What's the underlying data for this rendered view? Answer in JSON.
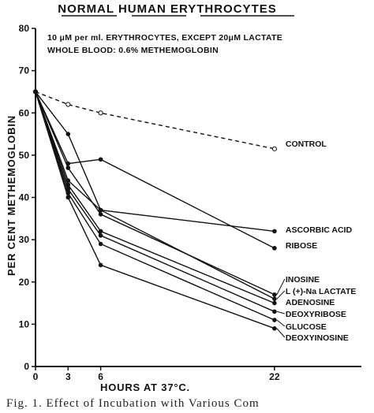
{
  "chart_data": {
    "type": "line",
    "title": "NORMAL HUMAN ERYTHROCYTES",
    "notes": [
      "10 μM per ml. ERYTHROCYTES, EXCEPT 20μM LACTATE",
      "WHOLE BLOOD: 0.6% METHEMOGLOBIN"
    ],
    "xlabel": "HOURS AT 37°C.",
    "ylabel": "PER CENT METHEMOGLOBIN",
    "x_ticks": [
      "0",
      "3",
      "6",
      "22"
    ],
    "y_ticks": [
      "0",
      "10",
      "20",
      "30",
      "40",
      "50",
      "60",
      "70",
      "80"
    ],
    "xlim": [
      0,
      30
    ],
    "ylim": [
      0,
      80
    ],
    "grid": false,
    "legend": "labels at line ends (right)",
    "series": [
      {
        "name": "CONTROL",
        "x": [
          0,
          3,
          6,
          22
        ],
        "y": [
          65,
          62,
          60,
          51.5
        ],
        "style": "dashed",
        "marker": "open-circle"
      },
      {
        "name": "ASCORBIC ACID",
        "x": [
          0,
          3,
          6,
          22
        ],
        "y": [
          65,
          55,
          37,
          32
        ],
        "style": "solid",
        "marker": "filled-circle"
      },
      {
        "name": "RIBOSE",
        "x": [
          0,
          3,
          6,
          22
        ],
        "y": [
          65,
          48,
          49,
          28
        ],
        "style": "solid",
        "marker": "filled-circle"
      },
      {
        "name": "INOSINE",
        "x": [
          0,
          3,
          6,
          22
        ],
        "y": [
          65,
          47,
          36,
          17
        ],
        "style": "solid",
        "marker": "filled-circle"
      },
      {
        "name": "L (+)-Na LACTATE",
        "x": [
          0,
          3,
          6,
          22
        ],
        "y": [
          65,
          44,
          37,
          16
        ],
        "style": "solid",
        "marker": "filled-circle"
      },
      {
        "name": "ADENOSINE",
        "x": [
          0,
          3,
          6,
          22
        ],
        "y": [
          65,
          43,
          32,
          15
        ],
        "style": "solid",
        "marker": "filled-circle"
      },
      {
        "name": "DEOXYRIBOSE",
        "x": [
          0,
          3,
          6,
          22
        ],
        "y": [
          65,
          42,
          31,
          13
        ],
        "style": "solid",
        "marker": "filled-circle"
      },
      {
        "name": "GLUCOSE",
        "x": [
          0,
          3,
          6,
          22
        ],
        "y": [
          65,
          41,
          29,
          11
        ],
        "style": "solid",
        "marker": "filled-circle"
      },
      {
        "name": "DEOXYINOSINE",
        "x": [
          0,
          3,
          6,
          22
        ],
        "y": [
          65,
          40,
          24,
          9
        ],
        "style": "solid",
        "marker": "filled-circle"
      }
    ]
  },
  "caption": "Fig. 1. Effect of Incubation with Various Com"
}
